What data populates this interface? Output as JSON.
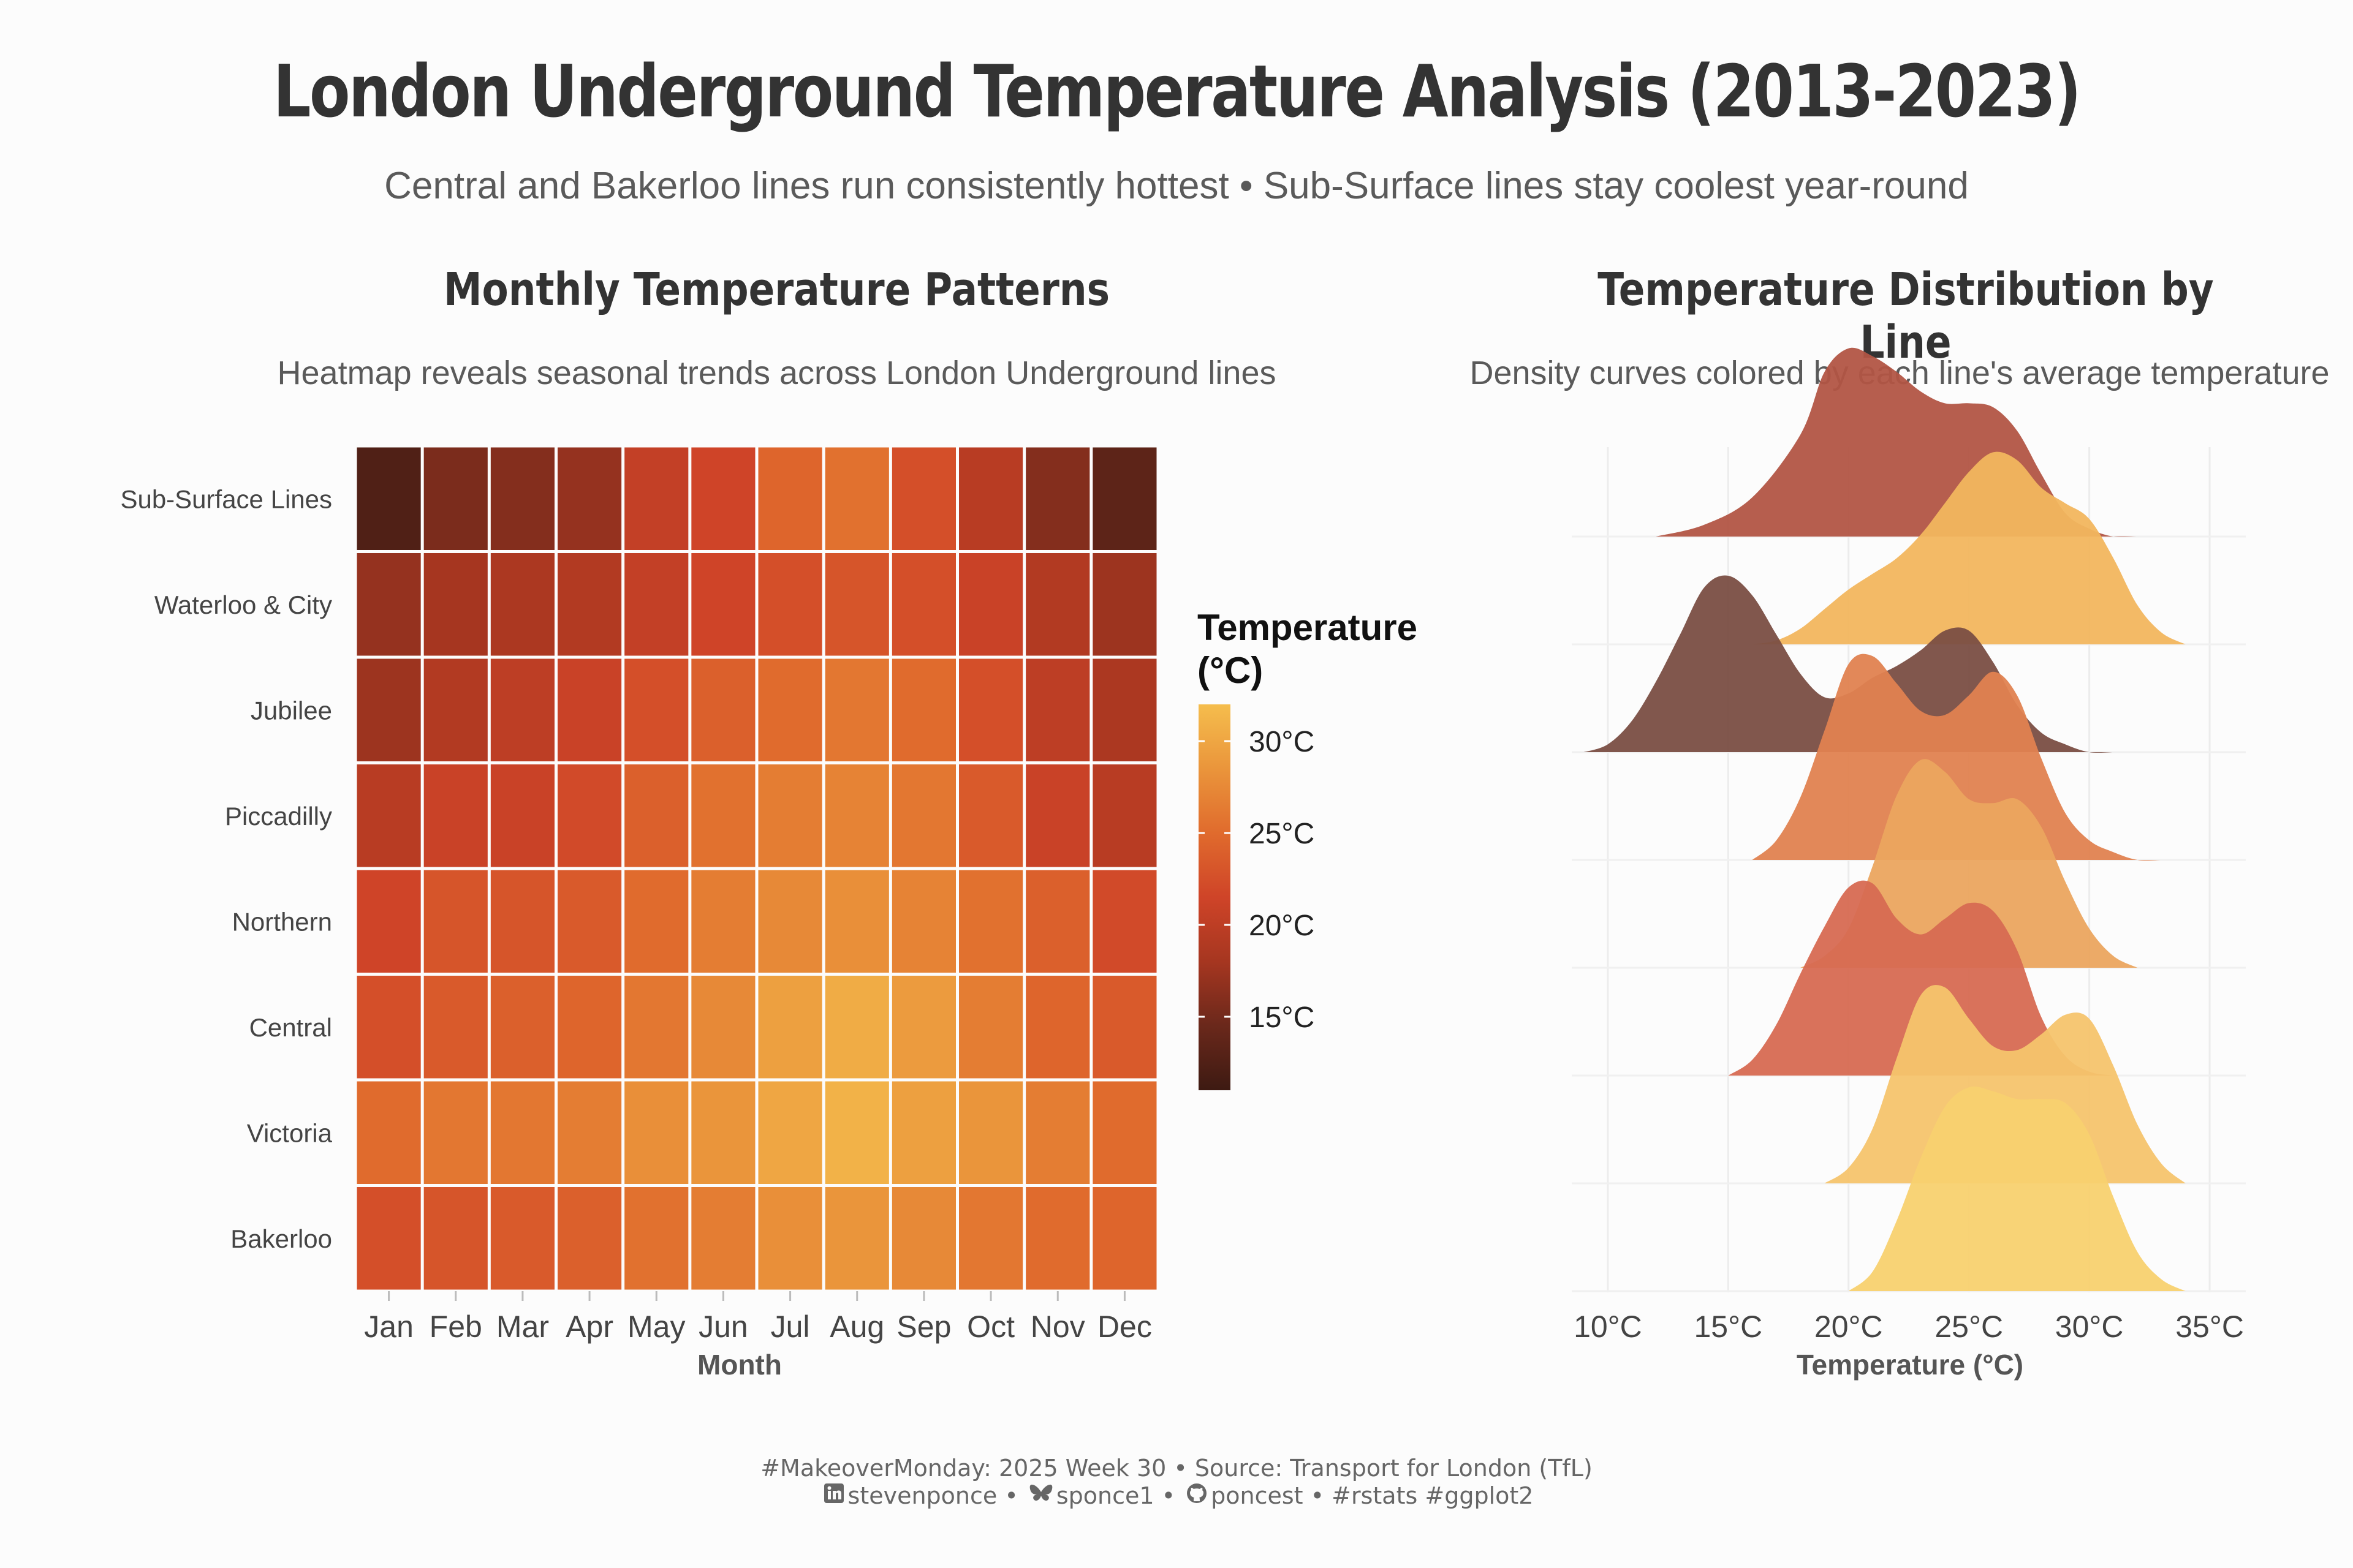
{
  "title": "London Underground Temperature Analysis (2013-2023)",
  "subtitle": "Central and Bakerloo lines run consistently hottest • Sub-Surface lines stay coolest year-round",
  "caption": {
    "line1": "#MakeoverMonday: 2025 Week 30 • Source: Transport for London (TfL)",
    "linkedin": "stevenponce",
    "sep1": " • ",
    "bluesky": "sponce1",
    "sep2": " • ",
    "github": "poncest",
    "tags": " • #rstats #ggplot2"
  },
  "colors": {
    "background": "#fcfcfc",
    "scale": [
      "#3d1a12",
      "#6a281b",
      "#a63620",
      "#cf4428",
      "#e06b2d",
      "#ea953b",
      "#f5bd4d"
    ]
  },
  "chart_data": [
    {
      "type": "heatmap",
      "title": "Monthly Temperature Patterns",
      "subtitle": "Heatmap reveals seasonal trends across London Underground lines",
      "xlabel": "Month",
      "ylabel": "",
      "categories_x": [
        "Jan",
        "Feb",
        "Mar",
        "Apr",
        "May",
        "Jun",
        "Jul",
        "Aug",
        "Sep",
        "Oct",
        "Nov",
        "Dec"
      ],
      "categories_y": [
        "Sub-Surface Lines",
        "Waterloo & City",
        "Jubilee",
        "Piccadilly",
        "Northern",
        "Central",
        "Victoria",
        "Bakerloo"
      ],
      "values": [
        [
          12.5,
          15.5,
          16.0,
          17.0,
          20.5,
          21.5,
          24.5,
          25.5,
          22.5,
          19.5,
          16.0,
          13.5
        ],
        [
          17.0,
          18.0,
          18.5,
          19.0,
          20.5,
          21.5,
          22.5,
          23.0,
          22.5,
          21.0,
          19.0,
          17.5
        ],
        [
          17.5,
          19.0,
          20.0,
          21.0,
          22.5,
          24.0,
          25.0,
          26.0,
          25.0,
          22.5,
          20.0,
          18.5
        ],
        [
          19.5,
          21.0,
          21.0,
          22.0,
          24.0,
          25.5,
          26.5,
          27.0,
          26.0,
          23.5,
          21.0,
          19.5
        ],
        [
          21.5,
          23.0,
          23.0,
          23.5,
          25.0,
          26.5,
          27.5,
          28.0,
          27.0,
          25.5,
          24.0,
          22.0
        ],
        [
          22.5,
          23.5,
          24.0,
          24.5,
          26.0,
          27.5,
          29.5,
          30.5,
          29.0,
          26.5,
          24.5,
          23.5
        ],
        [
          25.0,
          26.0,
          26.0,
          26.5,
          28.0,
          28.5,
          30.0,
          31.0,
          29.5,
          28.5,
          26.5,
          25.0
        ],
        [
          22.5,
          23.0,
          23.5,
          24.0,
          25.5,
          26.5,
          28.0,
          28.5,
          27.5,
          26.0,
          25.0,
          24.5
        ]
      ],
      "legend_title": "Temperature (°C)",
      "legend_ticks": [
        "15°C",
        "20°C",
        "25°C",
        "30°C"
      ],
      "legend_tick_values": [
        15,
        20,
        25,
        30
      ],
      "color_range": [
        11,
        32
      ]
    },
    {
      "type": "area",
      "subtype": "ridgeline",
      "title": "Temperature Distribution by Line",
      "subtitle": "Density curves colored by each line's average temperature",
      "xlabel": "Temperature (°C)",
      "xlim": [
        8.5,
        36.5
      ],
      "x_ticks": [
        10,
        15,
        20,
        25,
        30,
        35
      ],
      "x_tick_labels": [
        "10°C",
        "15°C",
        "20°C",
        "25°C",
        "30°C",
        "35°C"
      ],
      "grid": true,
      "series": [
        {
          "line": "Sub-Surface Lines",
          "color": "#b25544",
          "x": [
            12,
            14,
            16,
            18,
            19,
            20,
            21,
            22,
            23,
            24,
            25,
            26,
            27,
            28,
            29,
            30,
            31,
            32
          ],
          "density": [
            0.0,
            0.03,
            0.1,
            0.26,
            0.42,
            0.48,
            0.46,
            0.42,
            0.37,
            0.34,
            0.34,
            0.33,
            0.27,
            0.16,
            0.06,
            0.02,
            0.0,
            0.0
          ]
        },
        {
          "line": "Waterloo & City",
          "color": "#f2b65e",
          "x": [
            16,
            17,
            18,
            19,
            20,
            21,
            22,
            23,
            24,
            25,
            26,
            27,
            28,
            29,
            30,
            31,
            32,
            33,
            34
          ],
          "density": [
            0.0,
            0.01,
            0.04,
            0.09,
            0.14,
            0.18,
            0.22,
            0.28,
            0.36,
            0.44,
            0.49,
            0.47,
            0.4,
            0.36,
            0.32,
            0.22,
            0.1,
            0.03,
            0.0
          ]
        },
        {
          "line": "Jubilee",
          "color": "#7a4e43",
          "x": [
            9,
            10,
            11,
            12,
            13,
            14,
            15,
            16,
            17,
            18,
            19,
            20,
            21,
            22,
            23,
            24,
            25,
            26,
            27,
            28,
            29,
            30,
            31
          ],
          "density": [
            0.0,
            0.02,
            0.08,
            0.18,
            0.3,
            0.42,
            0.45,
            0.4,
            0.3,
            0.2,
            0.14,
            0.15,
            0.19,
            0.22,
            0.26,
            0.31,
            0.31,
            0.23,
            0.12,
            0.05,
            0.02,
            0.0,
            0.0
          ]
        },
        {
          "line": "Piccadilly",
          "color": "#e08250",
          "x": [
            16,
            17,
            18,
            19,
            20,
            21,
            22,
            23,
            24,
            25,
            26,
            27,
            28,
            29,
            30,
            31,
            32,
            33
          ],
          "density": [
            0.0,
            0.05,
            0.16,
            0.33,
            0.5,
            0.52,
            0.45,
            0.38,
            0.37,
            0.42,
            0.48,
            0.42,
            0.26,
            0.12,
            0.05,
            0.02,
            0.0,
            0.0
          ]
        },
        {
          "line": "Northern",
          "color": "#eba55f",
          "x": [
            18,
            19,
            20,
            21,
            22,
            23,
            24,
            25,
            26,
            27,
            28,
            29,
            30,
            31,
            32
          ],
          "density": [
            0.0,
            0.03,
            0.1,
            0.26,
            0.44,
            0.53,
            0.5,
            0.43,
            0.42,
            0.43,
            0.36,
            0.22,
            0.1,
            0.03,
            0.0
          ]
        },
        {
          "line": "Central",
          "color": "#d76a52",
          "x": [
            15,
            16,
            17,
            18,
            19,
            20,
            21,
            22,
            23,
            24,
            25,
            26,
            27,
            28,
            29,
            30,
            31
          ],
          "density": [
            0.0,
            0.04,
            0.13,
            0.26,
            0.38,
            0.48,
            0.49,
            0.4,
            0.36,
            0.4,
            0.44,
            0.42,
            0.32,
            0.15,
            0.05,
            0.01,
            0.0
          ]
        },
        {
          "line": "Victoria",
          "color": "#f6c46d",
          "x": [
            19,
            20,
            21,
            22,
            23,
            24,
            25,
            26,
            27,
            28,
            29,
            30,
            31,
            32,
            33,
            34
          ],
          "density": [
            0.0,
            0.04,
            0.14,
            0.32,
            0.48,
            0.5,
            0.42,
            0.35,
            0.34,
            0.38,
            0.43,
            0.42,
            0.3,
            0.15,
            0.05,
            0.0
          ]
        },
        {
          "line": "Bakerloo",
          "color": "#f8d16f",
          "x": [
            20,
            21,
            22,
            23,
            24,
            25,
            26,
            27,
            28,
            29,
            30,
            31,
            32,
            33,
            34
          ],
          "density": [
            0.0,
            0.05,
            0.18,
            0.34,
            0.47,
            0.52,
            0.51,
            0.49,
            0.49,
            0.48,
            0.4,
            0.24,
            0.1,
            0.03,
            0.0
          ]
        }
      ]
    }
  ]
}
